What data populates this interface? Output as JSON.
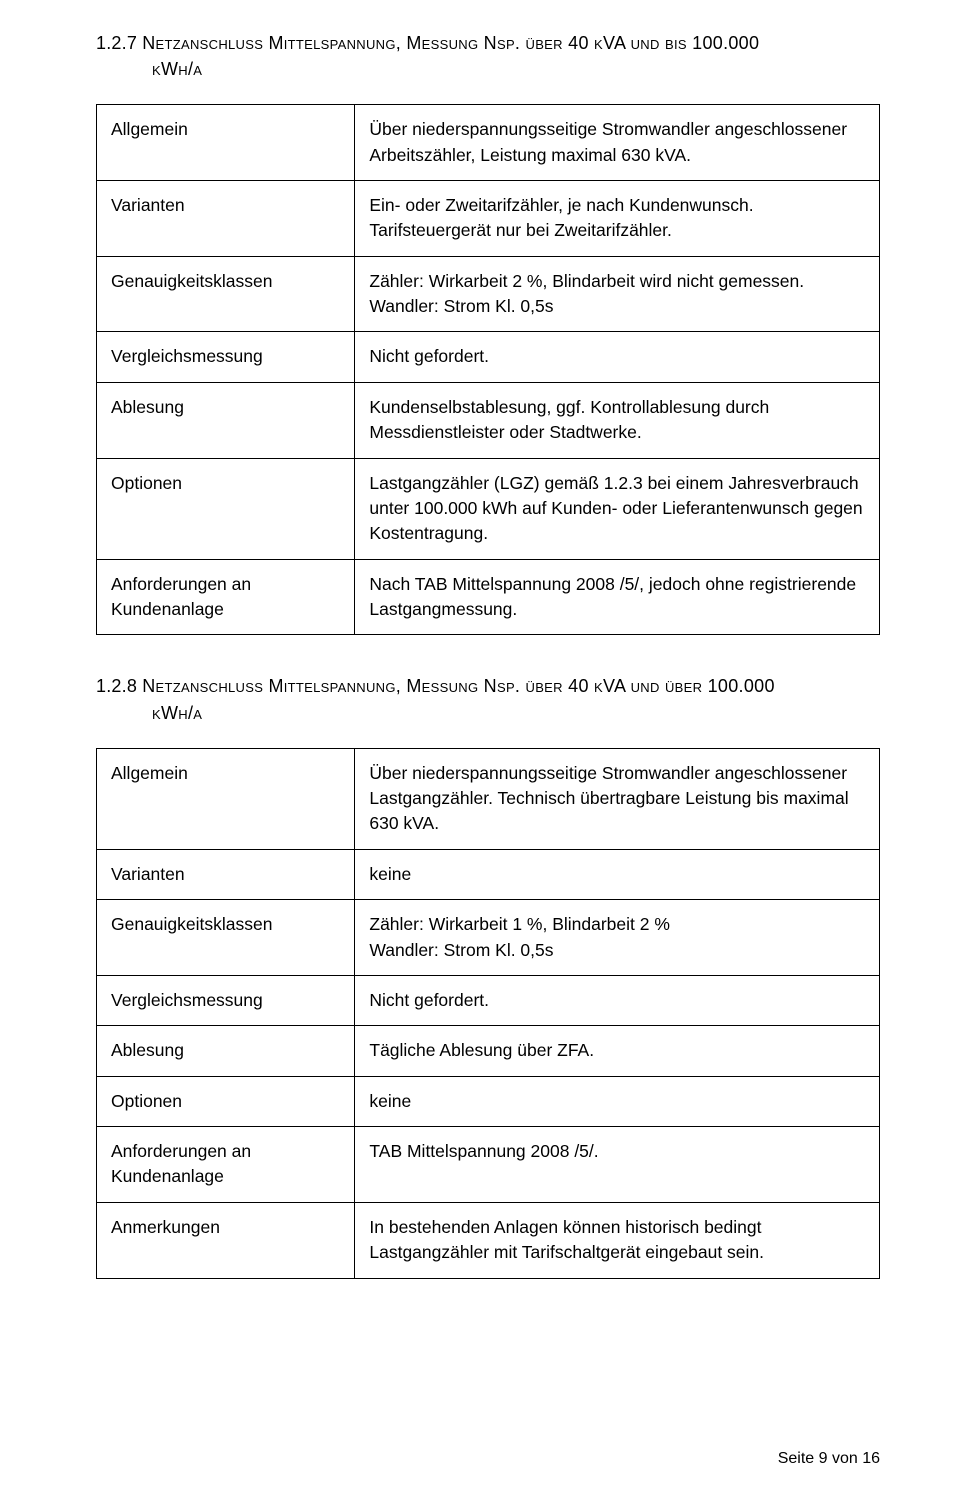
{
  "section1": {
    "heading_num": "1.2.7 ",
    "heading_main": "Netzanschluss Mittelspannung, Messung Nsp.",
    "heading_tail": " über 40 kVA und bis 100.000",
    "heading_unit": "kWh/a",
    "rows": [
      {
        "label": "Allgemein",
        "value": "Über niederspannungsseitige Stromwandler angeschlossener Arbeitszähler, Leistung maximal 630 kVA."
      },
      {
        "label": "Varianten",
        "value": "Ein- oder Zweitarifzähler, je nach Kundenwunsch. Tarifsteuergerät nur bei Zweitarifzähler."
      },
      {
        "label": "Genauigkeitsklassen",
        "value": "Zähler: Wirkarbeit 2 %, Blindarbeit wird nicht gemessen.\nWandler: Strom Kl. 0,5s"
      },
      {
        "label": "Vergleichsmessung",
        "value": "Nicht gefordert."
      },
      {
        "label": "Ablesung",
        "value": "Kundenselbstablesung, ggf. Kontrollablesung durch Messdienstleister oder Stadtwerke."
      },
      {
        "label": "Optionen",
        "value": "Lastgangzähler (LGZ) gemäß 1.2.3 bei einem Jahresverbrauch unter 100.000 kWh auf Kunden- oder Lieferantenwunsch gegen Kostentragung."
      },
      {
        "label": "Anforderungen an Kundenanlage",
        "value": "Nach TAB Mittelspannung 2008 /5/, jedoch ohne registrierende Lastgangmessung."
      }
    ]
  },
  "section2": {
    "heading_num": "1.2.8 ",
    "heading_main": "Netzanschluss Mittelspannung, Messung Nsp.",
    "heading_tail": " über 40 kVA und über 100.000",
    "heading_unit": "kWh/a",
    "rows": [
      {
        "label": "Allgemein",
        "value": "Über niederspannungsseitige Stromwandler angeschlossener Lastgangzähler. Technisch übertragbare Leistung bis maximal 630 kVA."
      },
      {
        "label": "Varianten",
        "value": "keine"
      },
      {
        "label": "Genauigkeitsklassen",
        "value": "Zähler: Wirkarbeit 1 %, Blindarbeit 2 %\nWandler: Strom Kl. 0,5s"
      },
      {
        "label": "Vergleichsmessung",
        "value": "Nicht gefordert."
      },
      {
        "label": "Ablesung",
        "value": "Tägliche Ablesung über ZFA."
      },
      {
        "label": "Optionen",
        "value": "keine"
      },
      {
        "label": "Anforderungen an Kundenanlage",
        "value": "TAB Mittelspannung 2008 /5/."
      },
      {
        "label": "Anmerkungen",
        "value": "In bestehenden Anlagen können historisch bedingt Lastgangzähler mit Tarifschaltgerät eingebaut sein."
      }
    ]
  },
  "footer": "Seite 9 von 16"
}
